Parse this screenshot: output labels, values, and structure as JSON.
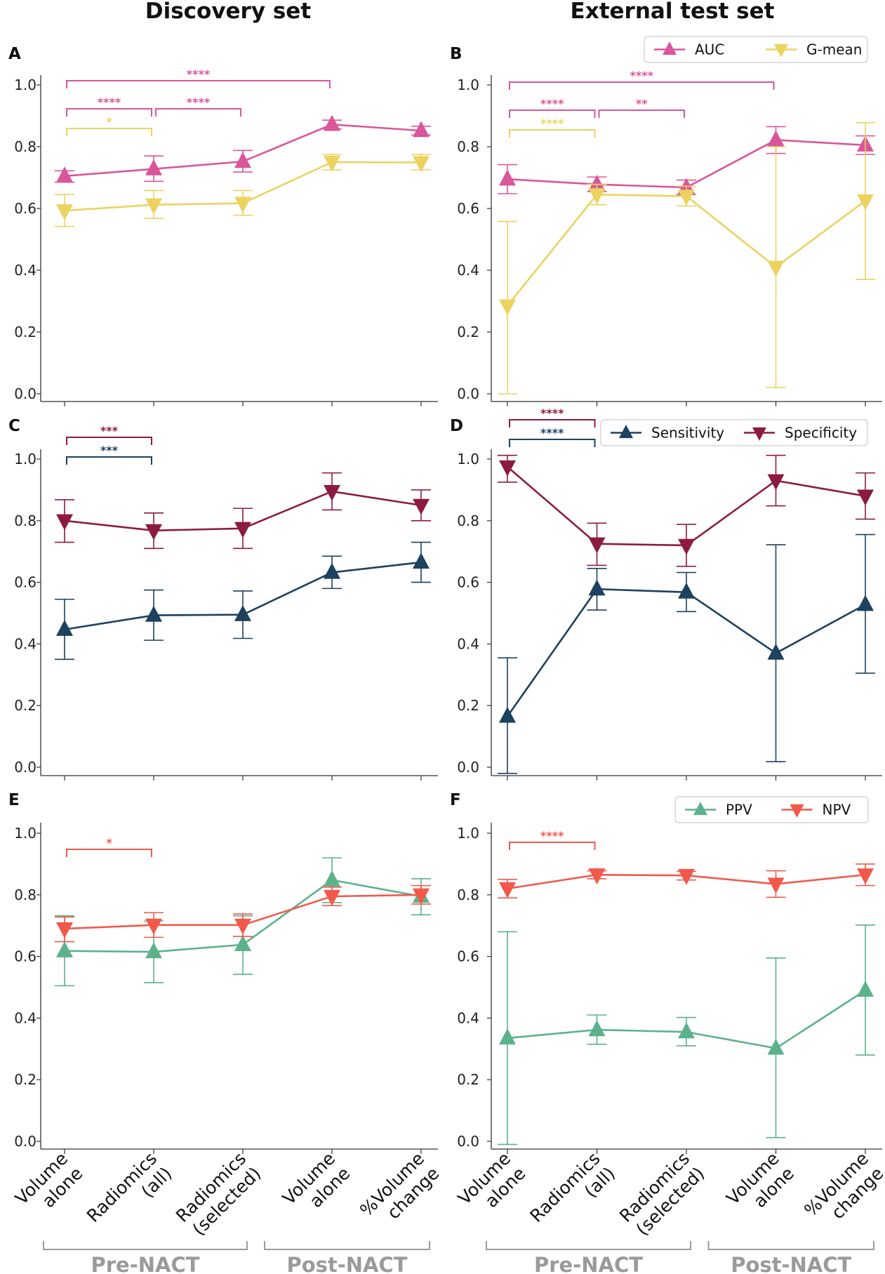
{
  "column_titles": [
    "Discovery set",
    "External test set"
  ],
  "x_categories": [
    "Volume\nalone",
    "Radiomics\n(all)",
    "Radiomics\n(selected)",
    "Volume\nalone",
    "%Volume\nchange"
  ],
  "group_labels": [
    "Pre-NACT",
    "Post-NACT"
  ],
  "y_tick_labels": [
    "0.0",
    "0.2",
    "0.4",
    "0.6",
    "0.8",
    "1.0"
  ],
  "colors": {
    "auc": "#d9569b",
    "gmean": "#ecd25f",
    "sensitivity": "#1d415e",
    "specificity": "#8c1b41",
    "ppv": "#5cb28b",
    "npv": "#f2594b"
  },
  "chart_data": [
    {
      "panel": "A",
      "type": "line",
      "ylim": [
        0,
        1
      ],
      "legend": [],
      "series": [
        {
          "name": "AUC",
          "color_key": "auc",
          "marker": "up",
          "values": [
            0.705,
            0.728,
            0.752,
            0.872,
            0.852
          ],
          "err_low": [
            0.685,
            0.688,
            0.718,
            0.858,
            0.838
          ],
          "err_high": [
            0.722,
            0.77,
            0.788,
            0.886,
            0.866
          ]
        },
        {
          "name": "G-mean",
          "color_key": "gmean",
          "marker": "down",
          "values": [
            0.593,
            0.612,
            0.617,
            0.75,
            0.749
          ],
          "err_low": [
            0.542,
            0.568,
            0.578,
            0.725,
            0.725
          ],
          "err_high": [
            0.645,
            0.658,
            0.658,
            0.775,
            0.775
          ]
        }
      ],
      "significance": [
        {
          "from": 0,
          "to": 3,
          "stars": "****",
          "color_key": "auc"
        },
        {
          "from": 0,
          "to": 1,
          "stars": "****",
          "color_key": "auc"
        },
        {
          "from": 1,
          "to": 2,
          "stars": "****",
          "color_key": "auc"
        },
        {
          "from": 0,
          "to": 1,
          "stars": "*",
          "color_key": "gmean"
        }
      ]
    },
    {
      "panel": "B",
      "type": "line",
      "ylim": [
        0,
        1
      ],
      "legend": [
        "AUC",
        "G-mean"
      ],
      "series": [
        {
          "name": "AUC",
          "color_key": "auc",
          "marker": "up",
          "values": [
            0.695,
            0.678,
            0.668,
            0.822,
            0.805
          ],
          "err_low": [
            0.648,
            0.655,
            0.645,
            0.778,
            0.775
          ],
          "err_high": [
            0.742,
            0.702,
            0.692,
            0.865,
            0.835
          ]
        },
        {
          "name": "G-mean",
          "color_key": "gmean",
          "marker": "down",
          "values": [
            0.285,
            0.645,
            0.64,
            0.41,
            0.625
          ],
          "err_low": [
            0.0,
            0.612,
            0.608,
            0.02,
            0.37
          ],
          "err_high": [
            0.558,
            0.678,
            0.672,
            0.8,
            0.878
          ]
        }
      ],
      "significance": [
        {
          "from": 0,
          "to": 3,
          "stars": "****",
          "color_key": "auc"
        },
        {
          "from": 0,
          "to": 1,
          "stars": "****",
          "color_key": "auc"
        },
        {
          "from": 1,
          "to": 2,
          "stars": "**",
          "color_key": "auc"
        },
        {
          "from": 0,
          "to": 1,
          "stars": "****",
          "color_key": "gmean"
        }
      ]
    },
    {
      "panel": "C",
      "type": "line",
      "ylim": [
        0,
        1
      ],
      "legend": [],
      "series": [
        {
          "name": "Sensitivity",
          "color_key": "sensitivity",
          "marker": "up",
          "values": [
            0.447,
            0.493,
            0.495,
            0.632,
            0.665
          ],
          "err_low": [
            0.35,
            0.412,
            0.418,
            0.58,
            0.6
          ],
          "err_high": [
            0.545,
            0.575,
            0.572,
            0.685,
            0.73
          ]
        },
        {
          "name": "Specificity",
          "color_key": "specificity",
          "marker": "down",
          "values": [
            0.8,
            0.768,
            0.775,
            0.895,
            0.85
          ],
          "err_low": [
            0.73,
            0.71,
            0.71,
            0.835,
            0.8
          ],
          "err_high": [
            0.868,
            0.825,
            0.84,
            0.955,
            0.9
          ]
        }
      ],
      "significance": [
        {
          "from": 0,
          "to": 1,
          "stars": "***",
          "color_key": "specificity"
        },
        {
          "from": 0,
          "to": 1,
          "stars": "***",
          "color_key": "sensitivity"
        }
      ]
    },
    {
      "panel": "D",
      "type": "line",
      "ylim": [
        0,
        1
      ],
      "legend": [
        "Sensitivity",
        "Specificity"
      ],
      "series": [
        {
          "name": "Sensitivity",
          "color_key": "sensitivity",
          "marker": "up",
          "values": [
            0.165,
            0.578,
            0.568,
            0.37,
            0.528
          ],
          "err_low": [
            -0.02,
            0.51,
            0.505,
            0.018,
            0.305
          ],
          "err_high": [
            0.355,
            0.645,
            0.632,
            0.722,
            0.755
          ]
        },
        {
          "name": "Specificity",
          "color_key": "specificity",
          "marker": "down",
          "values": [
            0.975,
            0.725,
            0.72,
            0.93,
            0.88
          ],
          "err_low": [
            0.925,
            0.655,
            0.652,
            0.848,
            0.805
          ],
          "err_high": [
            1.012,
            0.792,
            0.788,
            1.012,
            0.955
          ]
        }
      ],
      "significance": [
        {
          "from": 0,
          "to": 1,
          "stars": "****",
          "color_key": "specificity"
        },
        {
          "from": 0,
          "to": 1,
          "stars": "****",
          "color_key": "sensitivity"
        }
      ]
    },
    {
      "panel": "E",
      "type": "line",
      "ylim": [
        0,
        1
      ],
      "legend": [],
      "series": [
        {
          "name": "PPV",
          "color_key": "ppv",
          "marker": "up",
          "values": [
            0.618,
            0.615,
            0.638,
            0.848,
            0.795
          ],
          "err_low": [
            0.505,
            0.515,
            0.542,
            0.775,
            0.735
          ],
          "err_high": [
            0.732,
            0.715,
            0.732,
            0.92,
            0.852
          ]
        },
        {
          "name": "NPV",
          "color_key": "npv",
          "marker": "down",
          "values": [
            0.69,
            0.702,
            0.702,
            0.795,
            0.8
          ],
          "err_low": [
            0.648,
            0.662,
            0.665,
            0.765,
            0.77
          ],
          "err_high": [
            0.728,
            0.742,
            0.738,
            0.825,
            0.83
          ]
        }
      ],
      "significance": [
        {
          "from": 0,
          "to": 1,
          "stars": "*",
          "color_key": "npv"
        }
      ]
    },
    {
      "panel": "F",
      "type": "line",
      "ylim": [
        0,
        1
      ],
      "legend": [
        "PPV",
        "NPV"
      ],
      "series": [
        {
          "name": "PPV",
          "color_key": "ppv",
          "marker": "up",
          "values": [
            0.335,
            0.362,
            0.355,
            0.302,
            0.49
          ],
          "err_low": [
            -0.01,
            0.315,
            0.31,
            0.012,
            0.28
          ],
          "err_high": [
            0.68,
            0.41,
            0.402,
            0.595,
            0.702
          ]
        },
        {
          "name": "NPV",
          "color_key": "npv",
          "marker": "down",
          "values": [
            0.82,
            0.865,
            0.863,
            0.835,
            0.865
          ],
          "err_low": [
            0.79,
            0.852,
            0.848,
            0.792,
            0.83
          ],
          "err_high": [
            0.85,
            0.878,
            0.876,
            0.878,
            0.9
          ]
        }
      ],
      "significance": [
        {
          "from": 0,
          "to": 1,
          "stars": "****",
          "color_key": "npv"
        }
      ]
    }
  ]
}
